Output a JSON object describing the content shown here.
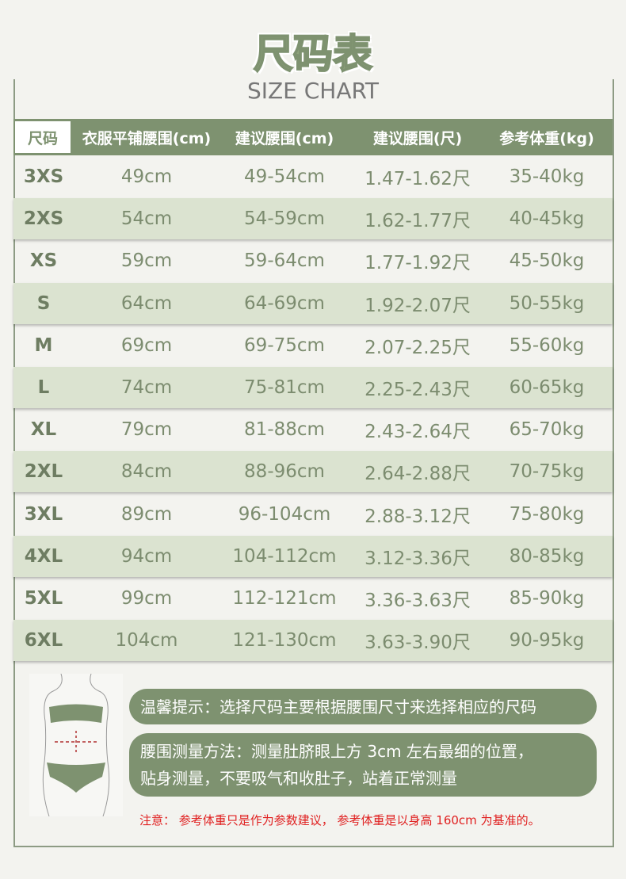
{
  "title": "尺码表",
  "subtitle": "SIZE CHART",
  "table": {
    "header": [
      "尺码",
      "衣服平铺腰围(cm)",
      "建议腰围(cm)",
      "建议腰围(尺)",
      "参考体重(kg)"
    ],
    "rows": [
      [
        "3XS",
        "49cm",
        "49-54cm",
        "1.47-1.62尺",
        "35-40kg"
      ],
      [
        "2XS",
        "54cm",
        "54-59cm",
        "1.62-1.77尺",
        "40-45kg"
      ],
      [
        "XS",
        "59cm",
        "59-64cm",
        "1.77-1.92尺",
        "45-50kg"
      ],
      [
        "S",
        "64cm",
        "64-69cm",
        "1.92-2.07尺",
        "50-55kg"
      ],
      [
        "M",
        "69cm",
        "69-75cm",
        "2.07-2.25尺",
        "55-60kg"
      ],
      [
        "L",
        "74cm",
        "75-81cm",
        "2.25-2.43尺",
        "60-65kg"
      ],
      [
        "XL",
        "79cm",
        "81-88cm",
        "2.43-2.64尺",
        "65-70kg"
      ],
      [
        "2XL",
        "84cm",
        "88-96cm",
        "2.64-2.88尺",
        "70-75kg"
      ],
      [
        "3XL",
        "89cm",
        "96-104cm",
        "2.88-3.12尺",
        "75-80kg"
      ],
      [
        "4XL",
        "94cm",
        "104-112cm",
        "3.12-3.36尺",
        "80-85kg"
      ],
      [
        "5XL",
        "99cm",
        "112-121cm",
        "3.36-3.63尺",
        "85-90kg"
      ],
      [
        "6XL",
        "104cm",
        "121-130cm",
        "3.63-3.90尺",
        "90-95kg"
      ]
    ]
  },
  "tips": [
    [
      "温馨提示：选择尺码主要根据腰围尺寸来选择相应的尺码"
    ],
    [
      "腰围测量方法：测量肚脐眼上方 3cm 左右最细的位置，",
      "贴身测量，不要吸气和收肚子，站着正常测量"
    ]
  ],
  "note": "注意： 参考体重只是作为参数建议， 参考体重是以身高 160cm 为基准的。"
}
